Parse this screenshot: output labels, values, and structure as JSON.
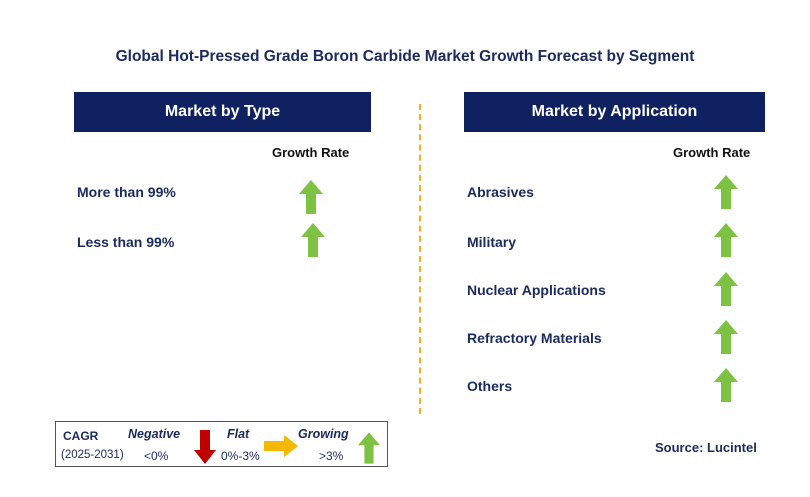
{
  "title": "Global Hot-Pressed Grade Boron Carbide Market Growth Forecast by Segment",
  "left_panel": {
    "header": "Market by Type",
    "growth_rate_label": "Growth Rate",
    "rows": [
      {
        "label": "More than 99%",
        "trend": "growing"
      },
      {
        "label": "Less than 99%",
        "trend": "growing"
      }
    ]
  },
  "right_panel": {
    "header": "Market by Application",
    "growth_rate_label": "Growth Rate",
    "rows": [
      {
        "label": "Abrasives",
        "trend": "growing"
      },
      {
        "label": "Military",
        "trend": "growing"
      },
      {
        "label": "Nuclear Applications",
        "trend": "growing"
      },
      {
        "label": "Refractory Materials",
        "trend": "growing"
      },
      {
        "label": "Others",
        "trend": "growing"
      }
    ]
  },
  "legend": {
    "cagr": "CAGR",
    "period": "(2025-2031)",
    "negative_label": "Negative",
    "negative_value": "<0%",
    "flat_label": "Flat",
    "flat_value": "0%-3%",
    "growing_label": "Growing",
    "growing_value": ">3%"
  },
  "source": "Source: Lucintel",
  "colors": {
    "header_bg": "#0f2161",
    "text_navy": "#1a2a5e",
    "growing_green": "#7dc242",
    "negative_red": "#c00000",
    "flat_amber": "#f5b800",
    "divider": "#f0b020"
  }
}
